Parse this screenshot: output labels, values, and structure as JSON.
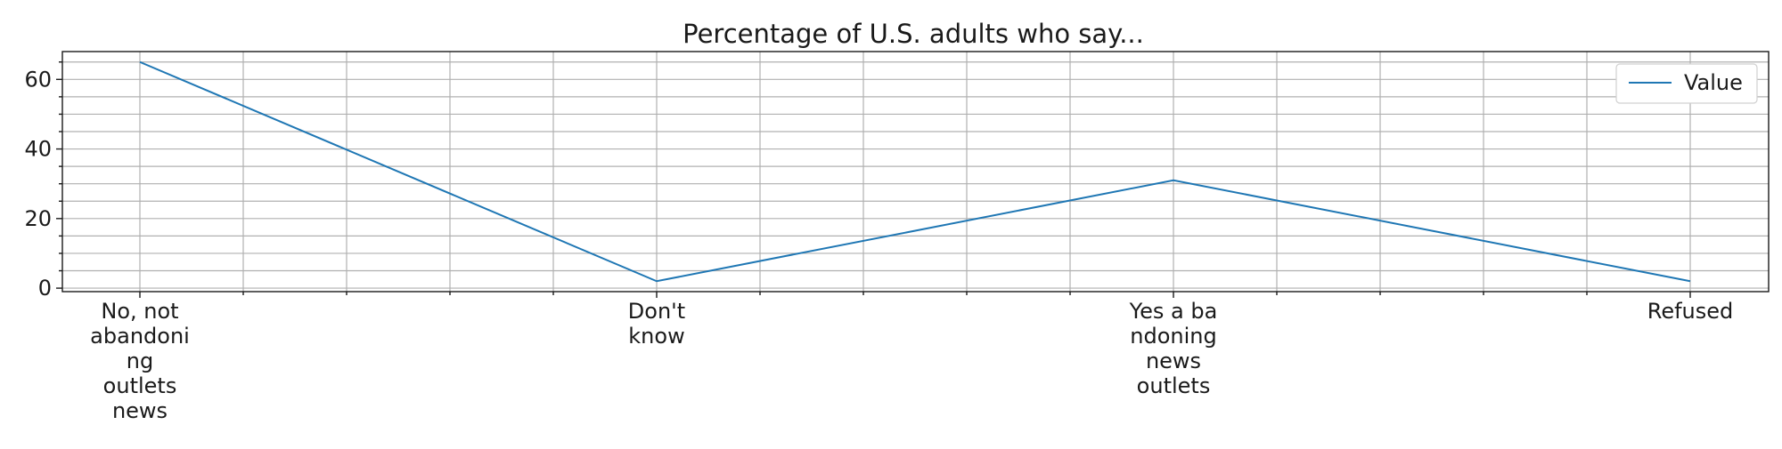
{
  "chart_data": {
    "type": "line",
    "title": "Percentage of U.S. adults who say...",
    "xlabel": "",
    "ylabel": "",
    "categories": [
      [
        "No, not",
        "abandoni",
        "ng",
        "outlets",
        "news"
      ],
      [
        "Don't",
        "know"
      ],
      [
        "Yes a ba",
        "ndoning",
        "news",
        "outlets"
      ],
      [
        "Refused"
      ]
    ],
    "series": [
      {
        "name": "Value",
        "values": [
          65,
          2,
          31,
          2
        ],
        "color": "#1f77b4"
      }
    ],
    "ylim": [
      -1,
      68
    ],
    "yticks": [
      0,
      20,
      40,
      60
    ],
    "yminor_step": 5,
    "xminor_per_category": 5,
    "grid": true,
    "legend_position": "top-right"
  }
}
